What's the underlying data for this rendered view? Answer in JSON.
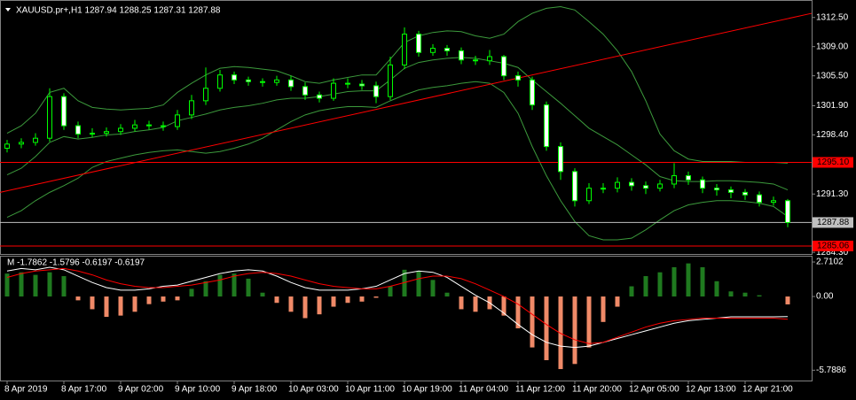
{
  "chart_data": [
    {
      "type": "candlestick",
      "title": "XAUUSD.pr+,H1  1287.94 1288.25 1287.31 1287.88",
      "categories": [
        "8 Apr 2019",
        null,
        null,
        null,
        "8 Apr 17:00",
        null,
        null,
        null,
        "9 Apr 02:00",
        null,
        null,
        null,
        "9 Apr 10:00",
        null,
        null,
        null,
        "9 Apr 18:00",
        null,
        null,
        null,
        "10 Apr 03:00",
        null,
        null,
        null,
        "10 Apr 11:00",
        null,
        null,
        null,
        "10 Apr 19:00",
        null,
        null,
        null,
        "11 Apr 04:00",
        null,
        null,
        null,
        "11 Apr 12:00",
        null,
        null,
        null,
        "11 Apr 20:00",
        null,
        null,
        null,
        "12 Apr 05:00",
        null,
        null,
        null,
        "12 Apr 13:00",
        null,
        null,
        null,
        "12 Apr 21:00",
        null,
        null,
        null
      ],
      "open": [
        1296.8,
        1297.3,
        1297.5,
        1298.0,
        1303.0,
        1299.5,
        1298.5,
        1298.6,
        1298.8,
        1299.2,
        1299.6,
        1299.5,
        1299.4,
        1300.8,
        1302.5,
        1304.0,
        1305.6,
        1305.0,
        1304.8,
        1304.7,
        1305.0,
        1304.2,
        1303.2,
        1302.8,
        1304.6,
        1304.5,
        1304.3,
        1303.0,
        1306.8,
        1310.5,
        1308.3,
        1308.8,
        1308.5,
        1307.4,
        1307.3,
        1307.8,
        1305.5,
        1305.0,
        1302.0,
        1297.0,
        1294.0,
        1290.5,
        1292.0,
        1292.0,
        1292.7,
        1292.3,
        1292.0,
        1292.5,
        1293.5,
        1293.0,
        1292.0,
        1291.8,
        1291.5,
        1291.2,
        1290.3,
        1290.5
      ],
      "high": [
        1297.8,
        1298.0,
        1298.6,
        1304.0,
        1303.4,
        1300.0,
        1299.2,
        1299.3,
        1299.7,
        1300.2,
        1300.1,
        1300.0,
        1301.4,
        1303.2,
        1306.5,
        1306.2,
        1306.0,
        1305.4,
        1305.2,
        1305.5,
        1305.5,
        1304.7,
        1303.6,
        1305.2,
        1305.2,
        1305.0,
        1304.8,
        1307.8,
        1311.3,
        1310.9,
        1309.3,
        1309.2,
        1308.9,
        1307.9,
        1308.6,
        1308.0,
        1306.0,
        1305.4,
        1302.4,
        1297.5,
        1294.4,
        1292.6,
        1292.6,
        1293.3,
        1293.2,
        1292.8,
        1293.0,
        1295.0,
        1294.0,
        1293.4,
        1292.5,
        1292.2,
        1291.9,
        1291.6,
        1291.0,
        1290.7
      ],
      "low": [
        1296.3,
        1296.8,
        1297.1,
        1297.6,
        1299.0,
        1298.0,
        1298.1,
        1298.2,
        1298.4,
        1298.8,
        1299.0,
        1298.9,
        1299.0,
        1300.3,
        1302.0,
        1303.6,
        1304.5,
        1304.3,
        1304.2,
        1304.3,
        1303.7,
        1302.6,
        1302.3,
        1302.5,
        1304.0,
        1303.8,
        1302.2,
        1302.6,
        1306.3,
        1307.8,
        1307.9,
        1307.9,
        1306.9,
        1306.8,
        1306.8,
        1305.0,
        1304.2,
        1301.4,
        1296.5,
        1293.0,
        1289.8,
        1290.1,
        1291.4,
        1291.5,
        1291.7,
        1291.3,
        1291.6,
        1292.0,
        1292.4,
        1291.4,
        1291.1,
        1290.8,
        1290.6,
        1289.8,
        1289.9,
        1287.31
      ],
      "close": [
        1297.3,
        1297.5,
        1298.0,
        1303.0,
        1299.5,
        1298.5,
        1298.6,
        1298.8,
        1299.2,
        1299.6,
        1299.5,
        1299.4,
        1300.8,
        1302.5,
        1304.0,
        1305.6,
        1305.0,
        1304.8,
        1304.7,
        1305.0,
        1304.2,
        1303.2,
        1302.8,
        1304.6,
        1304.5,
        1304.3,
        1303.0,
        1306.8,
        1310.5,
        1308.3,
        1308.8,
        1308.5,
        1307.4,
        1307.3,
        1307.8,
        1305.5,
        1305.0,
        1302.0,
        1297.0,
        1294.0,
        1290.5,
        1292.0,
        1292.0,
        1292.7,
        1292.3,
        1292.0,
        1292.5,
        1293.5,
        1293.0,
        1292.0,
        1291.8,
        1291.5,
        1291.2,
        1290.3,
        1290.5,
        1287.88
      ],
      "candle_color": "#00ff00",
      "up_fill": "#000000",
      "down_fill": "#ffffff",
      "overlays": [
        {
          "color": "#3c9a3c",
          "values": [
            1298.6,
            1299.5,
            1301,
            1303.5,
            1304.0,
            1302.5,
            1301.7,
            1301.5,
            1301.4,
            1301.5,
            1301.6,
            1302,
            1303.5,
            1304.6,
            1305.6,
            1306.4,
            1306.6,
            1306.5,
            1306.3,
            1306.1,
            1305.5,
            1304.8,
            1304.6,
            1305,
            1305.3,
            1305.6,
            1305.6,
            1307.5,
            1309.5,
            1310.3,
            1310.7,
            1310.9,
            1310.8,
            1310.3,
            1310,
            1310.5,
            1312,
            1313,
            1313.6,
            1313.8,
            1313.4,
            1312,
            1310.5,
            1308.5,
            1306,
            1302.5,
            1298.5,
            1296.5,
            1295.5,
            1295.2,
            1295.2,
            1295.2,
            1295.1,
            1295.1,
            1295.1,
            1295.0
          ]
        },
        {
          "color": "#3c9a3c",
          "values": [
            1293.6,
            1294.4,
            1295.8,
            1297.5,
            1298.2,
            1297.9,
            1298.1,
            1298.4,
            1298.5,
            1298.8,
            1299,
            1299.3,
            1300.1,
            1300.5,
            1300.9,
            1301.4,
            1301.7,
            1301.9,
            1302.2,
            1302.6,
            1302.8,
            1302.8,
            1303,
            1303.3,
            1303.6,
            1303.7,
            1303.7,
            1305,
            1306.4,
            1307.1,
            1307.4,
            1307.6,
            1307.7,
            1307.6,
            1307.3,
            1307,
            1306.5,
            1305,
            1303.6,
            1302.2,
            1300.7,
            1299.2,
            1298.2,
            1297.2,
            1296,
            1294.8,
            1293.4,
            1292.9,
            1292.8,
            1292.8,
            1292.9,
            1292.9,
            1292.8,
            1292.7,
            1292.5,
            1291.8
          ]
        },
        {
          "color": "#3c9a3c",
          "values": [
            1288.5,
            1289.3,
            1290.5,
            1291.5,
            1292.3,
            1293.2,
            1294.5,
            1295.2,
            1295.6,
            1296,
            1296.3,
            1296.5,
            1296.6,
            1296.4,
            1296.2,
            1296.4,
            1296.8,
            1297.3,
            1298,
            1299,
            1300,
            1300.8,
            1301.3,
            1301.6,
            1301.8,
            1301.8,
            1301.7,
            1302.5,
            1303.2,
            1303.8,
            1304.1,
            1304.3,
            1304.6,
            1304.8,
            1304.6,
            1303.5,
            1301,
            1297,
            1293.5,
            1290.5,
            1288,
            1286.3,
            1285.8,
            1285.8,
            1286,
            1287,
            1288.2,
            1289.3,
            1290,
            1290.3,
            1290.5,
            1290.5,
            1290.4,
            1290.2,
            1289.8,
            1288.6
          ]
        }
      ],
      "trendline": {
        "color": "#ff0000",
        "values": [
          1291.5,
          1313.0
        ]
      },
      "levels": [
        {
          "value": 1295.1,
          "label": "1295.10",
          "color": "#ff0000"
        },
        {
          "value": 1287.88,
          "label": "1287.88",
          "color": "#c0c0c0"
        },
        {
          "value": 1285.06,
          "label": "1285.06",
          "color": "#ff0000"
        }
      ],
      "ylim": [
        1284.1,
        1314.6
      ],
      "yticks": [
        {
          "value": 1312.5,
          "label": "1312.50"
        },
        {
          "value": 1309,
          "label": "1309.00"
        },
        {
          "value": 1305.5,
          "label": "1305.50"
        },
        {
          "value": 1301.9,
          "label": "1301.90"
        },
        {
          "value": 1298.4,
          "label": "1298.40"
        },
        {
          "value": 1291.3,
          "label": "1291.30"
        },
        {
          "value": 1284.3,
          "label": "1284.30"
        }
      ]
    },
    {
      "type": "macd",
      "title": "M -1.7862 -1.5796 -0.6197 -0.6197",
      "values": [
        1.8,
        1.9,
        1.7,
        1.9,
        1.6,
        -0.3,
        -1.0,
        -1.6,
        -1.5,
        -1.2,
        -0.6,
        -0.4,
        -0.3,
        0.6,
        1.2,
        1.7,
        1.8,
        1.4,
        0.3,
        -0.5,
        -1.2,
        -1.7,
        -1.4,
        -0.8,
        -0.5,
        -0.4,
        -0.1,
        0.8,
        2.1,
        2.0,
        1.3,
        0.3,
        -1.0,
        -1.2,
        -1.0,
        -1.5,
        -2.5,
        -4.0,
        -5.0,
        -5.7,
        -5.3,
        -4.0,
        -2.0,
        -0.8,
        0.8,
        1.6,
        1.9,
        2.3,
        2.6,
        2.3,
        1.2,
        0.4,
        0.3,
        0.1,
        0.0,
        -0.6197
      ],
      "positive_color": "#1f7a1f",
      "negative_color": "#f08a68",
      "lines": [
        {
          "color": "#ffffff",
          "values": [
            2.0,
            2.2,
            2.1,
            2.3,
            2.1,
            1.6,
            1.1,
            0.7,
            0.5,
            0.5,
            0.6,
            0.8,
            0.9,
            1.2,
            1.5,
            1.8,
            2.0,
            2.1,
            2.0,
            1.6,
            1.1,
            0.7,
            0.5,
            0.5,
            0.5,
            0.6,
            0.8,
            1.3,
            1.8,
            2.0,
            1.9,
            1.5,
            0.8,
            0.1,
            -0.5,
            -1.3,
            -2.2,
            -3.0,
            -3.6,
            -3.9,
            -4.0,
            -3.9,
            -3.6,
            -3.3,
            -3.0,
            -2.7,
            -2.4,
            -2.1,
            -1.9,
            -1.8,
            -1.7,
            -1.6,
            -1.6,
            -1.6,
            -1.6,
            -1.5796
          ]
        },
        {
          "color": "#ff0000",
          "values": [
            1.5,
            1.8,
            2.0,
            2.1,
            2.2,
            2.0,
            1.7,
            1.3,
            1.0,
            0.8,
            0.7,
            0.7,
            0.8,
            0.9,
            1.1,
            1.3,
            1.6,
            1.8,
            1.9,
            1.8,
            1.6,
            1.3,
            1.0,
            0.8,
            0.7,
            0.6,
            0.6,
            0.8,
            1.1,
            1.4,
            1.6,
            1.6,
            1.4,
            1.0,
            0.5,
            0.0,
            -0.6,
            -1.4,
            -2.2,
            -2.9,
            -3.4,
            -3.7,
            -3.6,
            -3.2,
            -2.8,
            -2.4,
            -2.1,
            -1.9,
            -1.8,
            -1.7,
            -1.7,
            -1.7,
            -1.7,
            -1.7,
            -1.7,
            -1.7862
          ]
        }
      ],
      "ylim": [
        -6.6,
        3.2
      ],
      "yticks": [
        2.7102,
        {
          "value": 0,
          "label": "0.00"
        },
        -5.7886
      ]
    }
  ]
}
